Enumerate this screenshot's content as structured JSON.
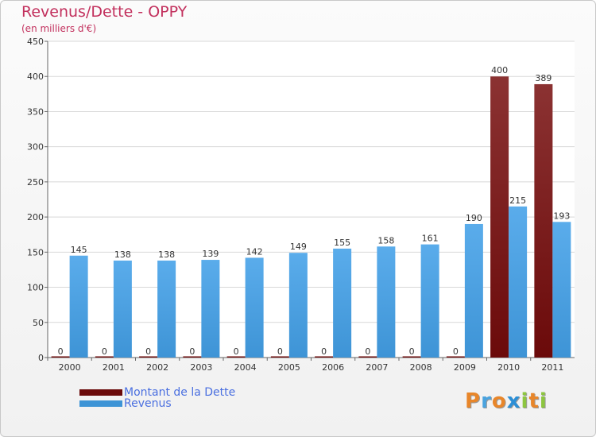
{
  "colors": {
    "debt": "#6b0a0a",
    "debt_light": "#8b3232",
    "revenue": "#3e94d6",
    "revenue_light": "#5aaceb",
    "title": "#c2305d",
    "legend_text": "#4a6fe0"
  },
  "chart_data": {
    "type": "bar",
    "title": "Revenus/Dette - OPPY",
    "subtitle": "(en milliers d'€)",
    "xlabel": "",
    "ylabel": "",
    "ylim": [
      0,
      450
    ],
    "yticks": [
      0,
      50,
      100,
      150,
      200,
      250,
      300,
      350,
      400,
      450
    ],
    "grid": true,
    "legend_position": "bottom-left",
    "categories": [
      "2000",
      "2001",
      "2002",
      "2003",
      "2004",
      "2005",
      "2006",
      "2007",
      "2008",
      "2009",
      "2010",
      "2011"
    ],
    "series": [
      {
        "name": "Montant de la Dette",
        "color": "#6b0a0a",
        "values": [
          0,
          0,
          0,
          0,
          0,
          0,
          0,
          0,
          0,
          0,
          400,
          389
        ]
      },
      {
        "name": "Revenus",
        "color": "#3e94d6",
        "values": [
          145,
          138,
          138,
          139,
          142,
          149,
          155,
          158,
          161,
          190,
          215,
          193
        ]
      }
    ]
  },
  "logo": {
    "letters": [
      "P",
      "r",
      "o",
      "x",
      "i",
      "t",
      "i"
    ],
    "colors": [
      "#e8862a",
      "#4aa3df",
      "#e8862a",
      "#2c8fd6",
      "#8dc63f",
      "#e8862a",
      "#8dc63f"
    ]
  }
}
